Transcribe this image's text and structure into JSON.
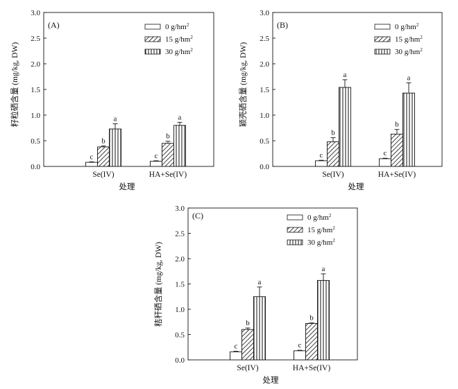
{
  "chart_data": [
    {
      "type": "bar",
      "panel_label": "(A)",
      "ylabel": "籽粒硒含量 (mg/kg, DW)",
      "xlabel": "处理",
      "ylim": [
        0,
        3.0
      ],
      "yticks": [
        "0.0",
        "0.5",
        "1.0",
        "1.5",
        "2.0",
        "2.5",
        "3.0"
      ],
      "categories": [
        "Se(IV)",
        "HA+Se(IV)"
      ],
      "series": [
        {
          "name": "0 g/hm",
          "sup": "2",
          "values": [
            0.08,
            0.1
          ],
          "errors": [
            0.01,
            0.01
          ],
          "letters": [
            "c",
            "c"
          ]
        },
        {
          "name": "15 g/hm",
          "sup": "2",
          "values": [
            0.38,
            0.45
          ],
          "errors": [
            0.02,
            0.04
          ],
          "letters": [
            "b",
            "b"
          ]
        },
        {
          "name": "30 g/hm",
          "sup": "2",
          "values": [
            0.73,
            0.8
          ],
          "errors": [
            0.1,
            0.06
          ],
          "letters": [
            "a",
            "a"
          ]
        }
      ]
    },
    {
      "type": "bar",
      "panel_label": "(B)",
      "ylabel": "颖壳硒含量 (mg/kg, DW)",
      "xlabel": "处理",
      "ylim": [
        0,
        3.0
      ],
      "yticks": [
        "0.0",
        "0.5",
        "1.0",
        "1.5",
        "2.0",
        "2.5",
        "3.0"
      ],
      "categories": [
        "Se(IV)",
        "HA+Se(IV)"
      ],
      "series": [
        {
          "name": "0 g/hm",
          "sup": "2",
          "values": [
            0.11,
            0.15
          ],
          "errors": [
            0.01,
            0.01
          ],
          "letters": [
            "c",
            "c"
          ]
        },
        {
          "name": "15 g/hm",
          "sup": "2",
          "values": [
            0.48,
            0.63
          ],
          "errors": [
            0.08,
            0.09
          ],
          "letters": [
            "b",
            "b"
          ]
        },
        {
          "name": "30 g/hm",
          "sup": "2",
          "values": [
            1.54,
            1.43
          ],
          "errors": [
            0.15,
            0.2
          ],
          "letters": [
            "a",
            "a"
          ]
        }
      ]
    },
    {
      "type": "bar",
      "panel_label": "(C)",
      "ylabel": "秸秆硒含量 (mg/kg, DW)",
      "xlabel": "处理",
      "ylim": [
        0,
        3.0
      ],
      "yticks": [
        "0.0",
        "0.5",
        "1.0",
        "1.5",
        "2.0",
        "2.5",
        "3.0"
      ],
      "categories": [
        "Se(IV)",
        "HA+Se(IV)"
      ],
      "series": [
        {
          "name": "0 g/hm",
          "sup": "2",
          "values": [
            0.16,
            0.18
          ],
          "errors": [
            0.01,
            0.01
          ],
          "letters": [
            "c",
            "c"
          ]
        },
        {
          "name": "15 g/hm",
          "sup": "2",
          "values": [
            0.6,
            0.72
          ],
          "errors": [
            0.03,
            0.01
          ],
          "letters": [
            "b",
            "b"
          ]
        },
        {
          "name": "30 g/hm",
          "sup": "2",
          "values": [
            1.25,
            1.57
          ],
          "errors": [
            0.19,
            0.13
          ],
          "letters": [
            "a",
            "a"
          ]
        }
      ]
    }
  ]
}
